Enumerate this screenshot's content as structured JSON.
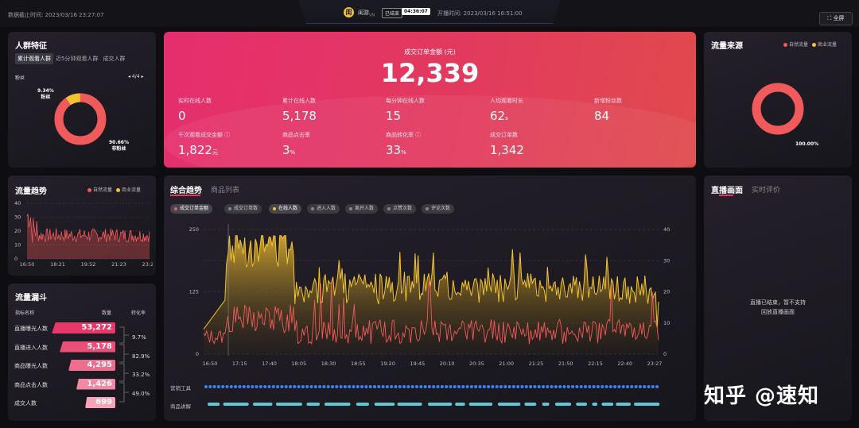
{
  "top": {
    "data_cutoff": "数据截止时间: 2023/03/16 23:27:07",
    "shop": "闺游",
    "shop_sub": "VN",
    "status": "已结束",
    "duration": "04:36:07",
    "start": "开播时间: 2023/03/16 16:51:00",
    "fullscreen": "全屏",
    "fullscreen_icon": "expand-icon"
  },
  "crowd": {
    "title": "人群特征",
    "tabs": [
      "累计观看人群",
      "近5分钟观看人群",
      "成交人群"
    ],
    "label": "粉丝",
    "pager": "4/4",
    "slices": [
      {
        "name": "粉丝",
        "pct": "9.34%",
        "value": 9.34,
        "color": "#f2c230"
      },
      {
        "name": "非粉丝",
        "pct": "90.66%",
        "value": 90.66,
        "color": "#f05a5a"
      }
    ]
  },
  "hero": {
    "title": "成交订单金额 (元)",
    "total": "12,339",
    "stats": [
      {
        "label": "实时在线人数",
        "value": "0",
        "unit": ""
      },
      {
        "label": "累计在线人数",
        "value": "5,178",
        "unit": ""
      },
      {
        "label": "每分钟在线人数",
        "value": "15",
        "unit": ""
      },
      {
        "label": "人均观看时长",
        "value": "62",
        "unit": "s"
      },
      {
        "label": "新增粉丝数",
        "value": "84",
        "unit": ""
      },
      {
        "label": "千次观看成交金额 ⓘ",
        "value": "1,822",
        "unit": "元"
      },
      {
        "label": "商品点击率",
        "value": "3",
        "unit": "%"
      },
      {
        "label": "商品转化率 ⓘ",
        "value": "33",
        "unit": "%"
      },
      {
        "label": "成交订单数",
        "value": "1,342",
        "unit": ""
      }
    ]
  },
  "traffic_source": {
    "title": "流量来源",
    "legend": [
      "自然流量",
      "商业流量"
    ],
    "colors": [
      "#f05a5a",
      "#f2c230"
    ],
    "pct": "100.00%",
    "value": 100
  },
  "trend_small": {
    "title": "流量趋势",
    "legend": [
      "自然流量",
      "商业流量"
    ],
    "y_ticks": [
      "40",
      "30",
      "20",
      "10",
      "0"
    ],
    "x_ticks": [
      "16:50",
      "18:21",
      "19:52",
      "21:23",
      "23:27"
    ]
  },
  "funnel": {
    "title": "流量漏斗",
    "col1": "指标名称",
    "col2": "数量",
    "col3": "转化率",
    "rows": [
      {
        "name": "直播曝光人数",
        "value": "53,272",
        "fill": 1.0
      },
      {
        "name": "直播进入人数",
        "value": "5,178",
        "fill": 0.87
      },
      {
        "name": "商品曝光人数",
        "value": "4,295",
        "fill": 0.74
      },
      {
        "name": "商品点击人数",
        "value": "1,426",
        "fill": 0.61
      },
      {
        "name": "成交人数",
        "value": "699",
        "fill": 0.48
      }
    ],
    "rates": [
      "9.7%",
      "82.9%",
      "33.2%",
      "49.0%"
    ]
  },
  "main": {
    "tabs": [
      "综合趋势",
      "商品列表"
    ],
    "chips": [
      {
        "label": "成交订单金额",
        "color": "#f05a5a",
        "on": true
      },
      {
        "label": "成交订单数",
        "color": "#888",
        "on": false
      },
      {
        "label": "在线人数",
        "color": "#f2c230",
        "on": true
      },
      {
        "label": "进入人数",
        "color": "#888",
        "on": false
      },
      {
        "label": "离开人数",
        "color": "#888",
        "on": false
      },
      {
        "label": "点赞次数",
        "color": "#888",
        "on": false
      },
      {
        "label": "评论次数",
        "color": "#888",
        "on": false
      }
    ],
    "row_labels": [
      "营销工具",
      "商品讲解"
    ]
  },
  "live": {
    "tabs": [
      "直播画面",
      "实时评价"
    ],
    "msg1": "直播已结束，暂不支持",
    "msg2": "回放直播画面"
  },
  "watermark": "知乎 @速知",
  "chart_data": [
    {
      "type": "line",
      "title": "流量趋势",
      "x_ticks": [
        "16:50",
        "18:21",
        "19:52",
        "21:23",
        "23:27"
      ],
      "ylim": [
        0,
        40
      ],
      "series": [
        {
          "name": "自然流量",
          "color": "#f05a5a"
        },
        {
          "name": "商业流量",
          "color": "#f2c230"
        }
      ]
    },
    {
      "type": "area",
      "title": "综合趋势",
      "x_ticks": [
        "16:50",
        "17:15",
        "17:40",
        "18:05",
        "18:30",
        "18:55",
        "19:20",
        "19:45",
        "20:10",
        "20:35",
        "21:00",
        "21:25",
        "21:50",
        "22:15",
        "22:40",
        "23:27"
      ],
      "y_left": [
        "250",
        "125",
        "0"
      ],
      "y_right": [
        "40",
        "30",
        "20",
        "10",
        "0"
      ],
      "ylim_left": [
        0,
        250
      ],
      "ylim_right": [
        0,
        40
      ],
      "series": [
        {
          "name": "成交订单金额",
          "color": "#f05a5a"
        },
        {
          "name": "在线人数",
          "color": "#f2c230"
        }
      ]
    }
  ]
}
